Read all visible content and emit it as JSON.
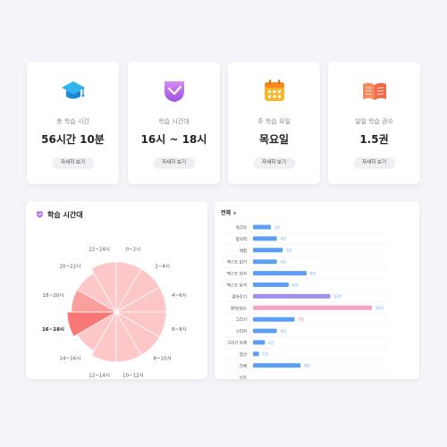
{
  "cards": [
    {
      "label": "총 학습 시간",
      "value": "56시간 10분",
      "button": "자세히 보기",
      "icon": "graduation-cap-icon"
    },
    {
      "label": "학습 시간대",
      "value": "16시 ~ 18시",
      "button": "자세히 보기",
      "icon": "clock-shield-icon"
    },
    {
      "label": "주 학습 요일",
      "value": "목요일",
      "button": "자세히 보기",
      "icon": "calendar-icon"
    },
    {
      "label": "일일 학습 권수",
      "value": "1.5권",
      "button": "자세히 보기",
      "icon": "open-book-icon"
    }
  ],
  "pie_panel": {
    "title": "학습 시간대",
    "icon": "clock-shield-icon"
  },
  "bar_panel": {
    "filter": "전체"
  },
  "colors": {
    "pie_light": "#fdc7c7",
    "pie_mid": "#fb9e9e",
    "pie_dark": "#f87878",
    "bar_blue": "#5a9ff5",
    "bar_purple": "#a18ff0",
    "bar_pink": "#f4a3c3",
    "highlight_red": "#e5474b"
  },
  "chart_data": [
    {
      "type": "pie",
      "title": "",
      "categories": [
        "0~2시",
        "2~4시",
        "4~6시",
        "6~8시",
        "8~10시",
        "10~12시",
        "12~14시",
        "14~16시",
        "16~18시",
        "18~20시",
        "20~22시",
        "22~24시"
      ],
      "values": [
        1,
        1,
        1,
        1,
        1,
        1,
        1,
        1,
        1,
        1,
        1,
        1
      ],
      "radii": [
        1,
        1,
        1,
        1,
        1,
        1,
        1,
        0.9,
        0.98,
        0.9,
        0.9,
        1
      ],
      "shades": [
        "light",
        "light",
        "light",
        "light",
        "light",
        "light",
        "light",
        "light",
        "dark",
        "mid",
        "light",
        "light"
      ],
      "highlight": "16~18시"
    },
    {
      "type": "bar",
      "orientation": "horizontal",
      "categories": [
        "워크북",
        "창의력",
        "체험",
        "텍스트 읽기",
        "텍스트 회사",
        "텍스트 분석",
        "말하주기",
        "창작/회소",
        "그리기",
        "스티커",
        "그리기 숙제",
        "점선",
        "전체",
        "노트"
      ],
      "values": [
        3,
        4,
        5,
        4,
        9,
        6,
        13,
        20,
        7,
        4,
        2,
        1,
        8,
        0
      ],
      "value_labels": [
        "3건",
        "4건",
        "5건",
        "4건",
        "9건",
        "6건",
        "13건",
        "20건",
        "7건",
        "4건",
        "2건",
        "1건",
        "8건",
        ""
      ],
      "colors": [
        "blue",
        "blue",
        "blue",
        "blue",
        "blue",
        "blue",
        "purple",
        "pink",
        "blue",
        "blue",
        "blue",
        "blue",
        "blue",
        "blue"
      ],
      "highlight": "그리기",
      "xlim": [
        0,
        20
      ]
    }
  ]
}
